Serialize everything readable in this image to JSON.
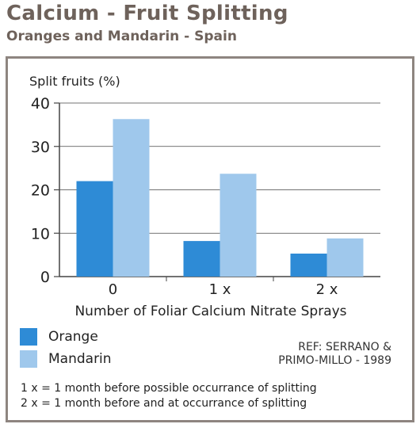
{
  "header": {
    "title": "Calcium - Fruit Splitting",
    "subtitle": "Oranges and Mandarin - Spain"
  },
  "chart_data": {
    "type": "bar",
    "categories": [
      "0",
      "1 x",
      "2 x"
    ],
    "series": [
      {
        "name": "Orange",
        "values": [
          22,
          8.2,
          5.3
        ],
        "color": "#2e8bd6"
      },
      {
        "name": "Mandarin",
        "values": [
          36.3,
          23.7,
          8.8
        ],
        "color": "#9fc8ec"
      }
    ],
    "ylabel": "Split fruits (%)",
    "xlabel": "Number of Foliar Calcium Nitrate Sprays",
    "ylim": [
      0,
      40
    ],
    "yticks": [
      0,
      10,
      20,
      30,
      40
    ],
    "grid": true,
    "legend_position": "bottom-left"
  },
  "reference": {
    "line1": "REF: SERRANO &",
    "line2": "PRIMO-MILLO - 1989"
  },
  "notes": [
    "1 x = 1 month before possible occurrance of splitting",
    "2 x = 1 month before and at occurrance of splitting"
  ]
}
